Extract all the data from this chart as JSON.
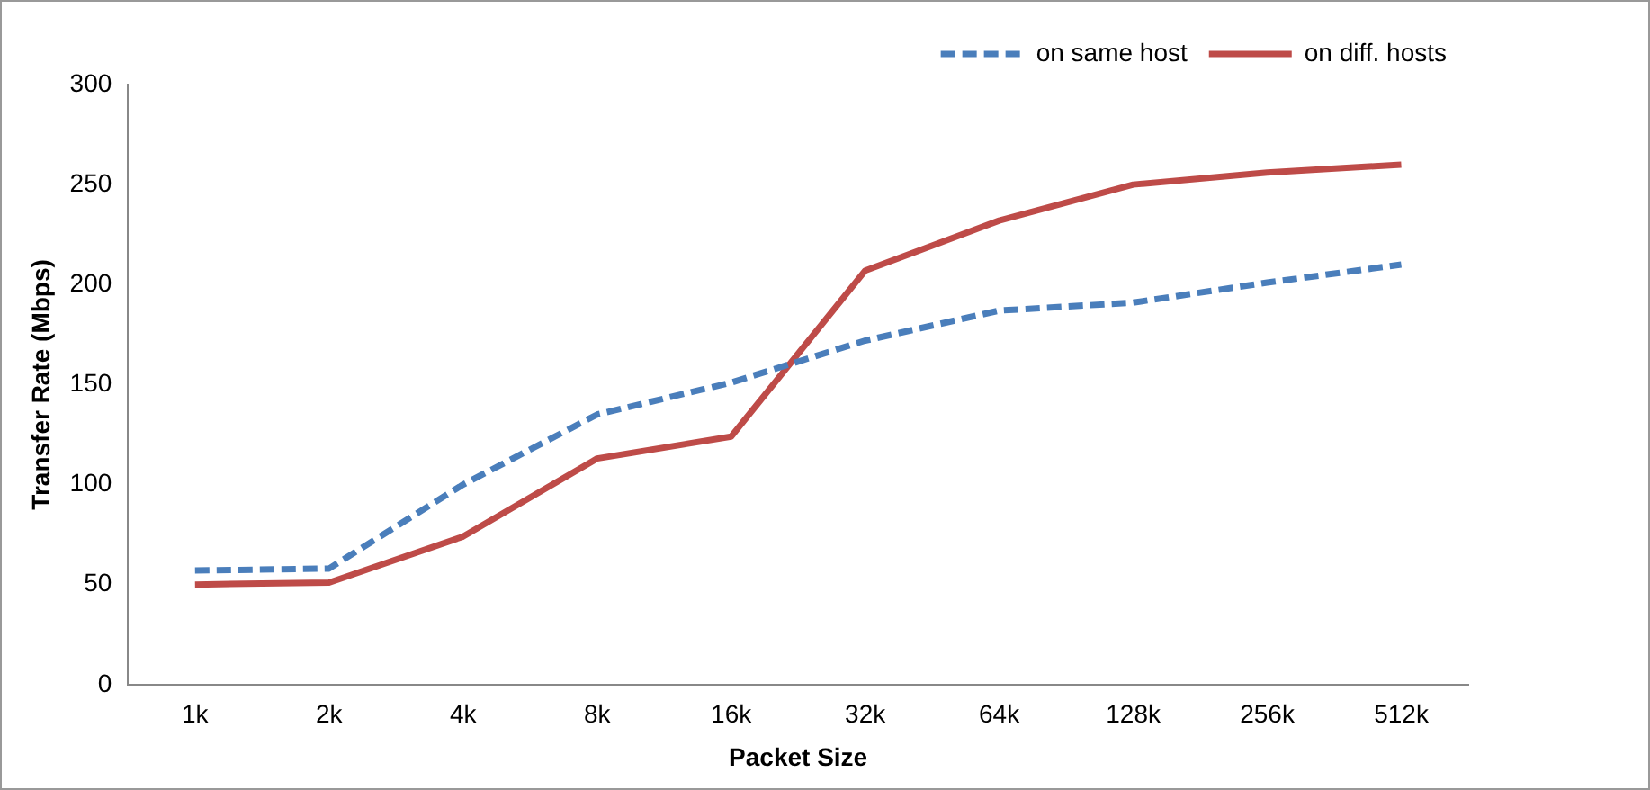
{
  "chart_data": {
    "type": "line",
    "xlabel": "Packet Size",
    "ylabel": "Transfer Rate (Mbps)",
    "categories": [
      "1k",
      "2k",
      "4k",
      "8k",
      "16k",
      "32k",
      "64k",
      "128k",
      "256k",
      "512k"
    ],
    "series": [
      {
        "name": "on same host",
        "color": "#4a7ebb",
        "line_style": "dashed",
        "values": [
          57,
          58,
          100,
          135,
          151,
          172,
          187,
          191,
          201,
          210
        ]
      },
      {
        "name": "on diff. hosts",
        "color": "#be4b48",
        "line_style": "solid",
        "values": [
          50,
          51,
          74,
          113,
          124,
          207,
          232,
          250,
          256,
          260
        ]
      }
    ],
    "ylim": [
      0,
      300
    ],
    "yticks": [
      0,
      50,
      100,
      150,
      200,
      250,
      300
    ],
    "grid": false,
    "legend": "top right",
    "marker": "none"
  }
}
